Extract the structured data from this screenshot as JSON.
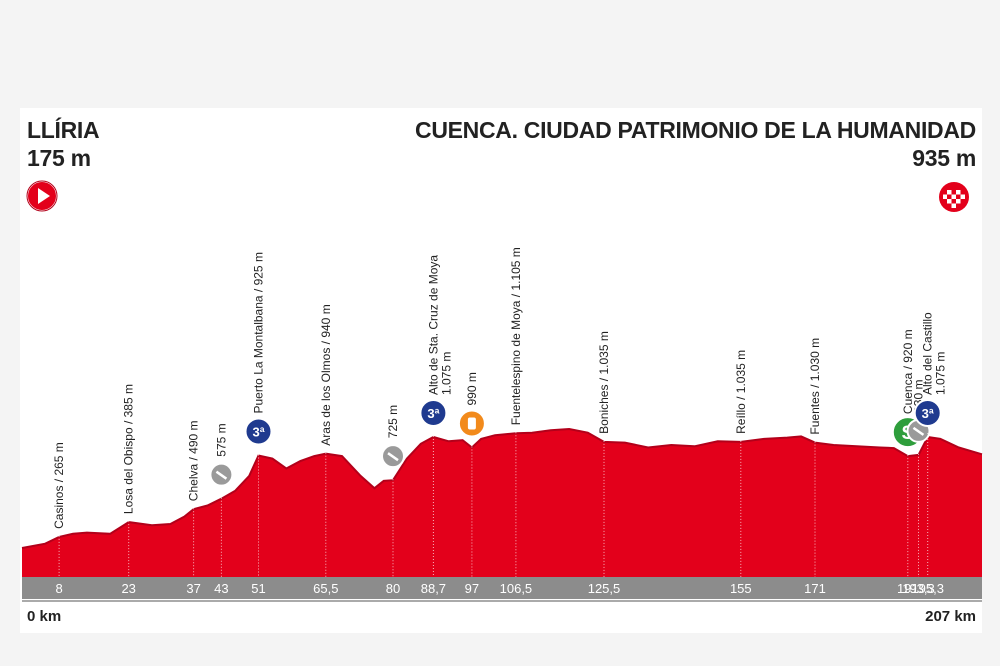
{
  "stage": {
    "start_name": "LLÍRIA",
    "start_altitude": "175 m",
    "finish_name": "CUENCA. CIUDAD PATRIMONIO DE LA HUMANIDAD",
    "finish_altitude": "935 m",
    "km_start": "0 km",
    "km_end": "207 km"
  },
  "icons": {
    "start": "start-flag-icon",
    "finish": "finish-checkered-icon",
    "climb": "mountain-climb-icon",
    "sprint": "sprint-icon",
    "feed": "feed-zone-icon",
    "descent": "descent-icon"
  },
  "colors": {
    "profile_fill": "#e3001b",
    "profile_dark": "#b3001a",
    "climb_badge": "#1f3a8f",
    "sprint_badge": "#2e9e3c",
    "feed_badge": "#f28a1b",
    "descent_badge": "#9a9a9a",
    "axis_band": "#8c8c8c"
  },
  "chart_data": {
    "type": "area",
    "x_unit": "km",
    "y_unit": "m",
    "xlim": [
      0,
      207
    ],
    "profile": [
      [
        0,
        175
      ],
      [
        5,
        210
      ],
      [
        8,
        265
      ],
      [
        11,
        290
      ],
      [
        14,
        300
      ],
      [
        19,
        290
      ],
      [
        23,
        385
      ],
      [
        28,
        360
      ],
      [
        32,
        370
      ],
      [
        35,
        430
      ],
      [
        37,
        490
      ],
      [
        40,
        520
      ],
      [
        43,
        575
      ],
      [
        46,
        640
      ],
      [
        49,
        760
      ],
      [
        51,
        925
      ],
      [
        54,
        900
      ],
      [
        57,
        820
      ],
      [
        60,
        880
      ],
      [
        63,
        920
      ],
      [
        65.5,
        940
      ],
      [
        69,
        920
      ],
      [
        73,
        760
      ],
      [
        76,
        660
      ],
      [
        78,
        720
      ],
      [
        80,
        725
      ],
      [
        83,
        900
      ],
      [
        86,
        1020
      ],
      [
        88.7,
        1075
      ],
      [
        92,
        1040
      ],
      [
        95,
        1050
      ],
      [
        97,
        990
      ],
      [
        99,
        1060
      ],
      [
        102,
        1090
      ],
      [
        106.5,
        1105
      ],
      [
        110,
        1110
      ],
      [
        114,
        1130
      ],
      [
        118,
        1140
      ],
      [
        122,
        1110
      ],
      [
        125.5,
        1035
      ],
      [
        130,
        1030
      ],
      [
        135,
        990
      ],
      [
        140,
        1010
      ],
      [
        145,
        1000
      ],
      [
        150,
        1040
      ],
      [
        155,
        1035
      ],
      [
        160,
        1060
      ],
      [
        165,
        1070
      ],
      [
        168,
        1080
      ],
      [
        171,
        1030
      ],
      [
        175,
        1010
      ],
      [
        180,
        1000
      ],
      [
        185,
        990
      ],
      [
        188,
        985
      ],
      [
        191,
        920
      ],
      [
        193.3,
        930
      ],
      [
        195.3,
        1075
      ],
      [
        198,
        1060
      ],
      [
        202,
        990
      ],
      [
        207,
        935
      ]
    ],
    "km_markers": [
      "8",
      "23",
      "37",
      "43",
      "51",
      "65,5",
      "80",
      "88,7",
      "97",
      "106,5",
      "125,5",
      "155",
      "171",
      "191",
      "193,3",
      "195,3"
    ],
    "km_values": [
      8,
      23,
      37,
      43,
      51,
      65.5,
      80,
      88.7,
      97,
      106.5,
      125.5,
      155,
      171,
      191,
      193.3,
      195.3
    ],
    "waypoints": [
      {
        "km": 8,
        "label": "Casinos / 265 m",
        "badge": null
      },
      {
        "km": 23,
        "label": "Losa del Obispo / 385 m",
        "badge": null
      },
      {
        "km": 37,
        "label": "Chelva / 490 m",
        "badge": null
      },
      {
        "km": 43,
        "label": "575 m",
        "badge": "descent"
      },
      {
        "km": 51,
        "label": "Puerto La Montalbana / 925 m",
        "badge": "climb"
      },
      {
        "km": 65.5,
        "label": "Aras de los Olmos / 940 m",
        "badge": null
      },
      {
        "km": 80,
        "label": "725 m",
        "badge": "descent"
      },
      {
        "km": 88.7,
        "label": "Alto de Sta. Cruz de Moya",
        "label2": "1.075 m",
        "badge": "climb"
      },
      {
        "km": 97,
        "label": "990 m",
        "badge": "feed"
      },
      {
        "km": 106.5,
        "label": "Fuentelespino de Moya / 1.105 m",
        "badge": null
      },
      {
        "km": 125.5,
        "label": "Boniches / 1.035 m",
        "badge": null
      },
      {
        "km": 155,
        "label": "Reíllo / 1.035 m",
        "badge": null
      },
      {
        "km": 171,
        "label": "Fuentes / 1.030 m",
        "badge": null
      },
      {
        "km": 191,
        "label": "Cuenca / 920 m",
        "badge": "sprint"
      },
      {
        "km": 193.3,
        "label": "930 m",
        "badge": "descent"
      },
      {
        "km": 195.3,
        "label": "Alto del Castillo",
        "label2": "1.075 m",
        "badge": "climb"
      }
    ],
    "badge_text": {
      "climb": "3ª",
      "sprint": "S"
    }
  }
}
